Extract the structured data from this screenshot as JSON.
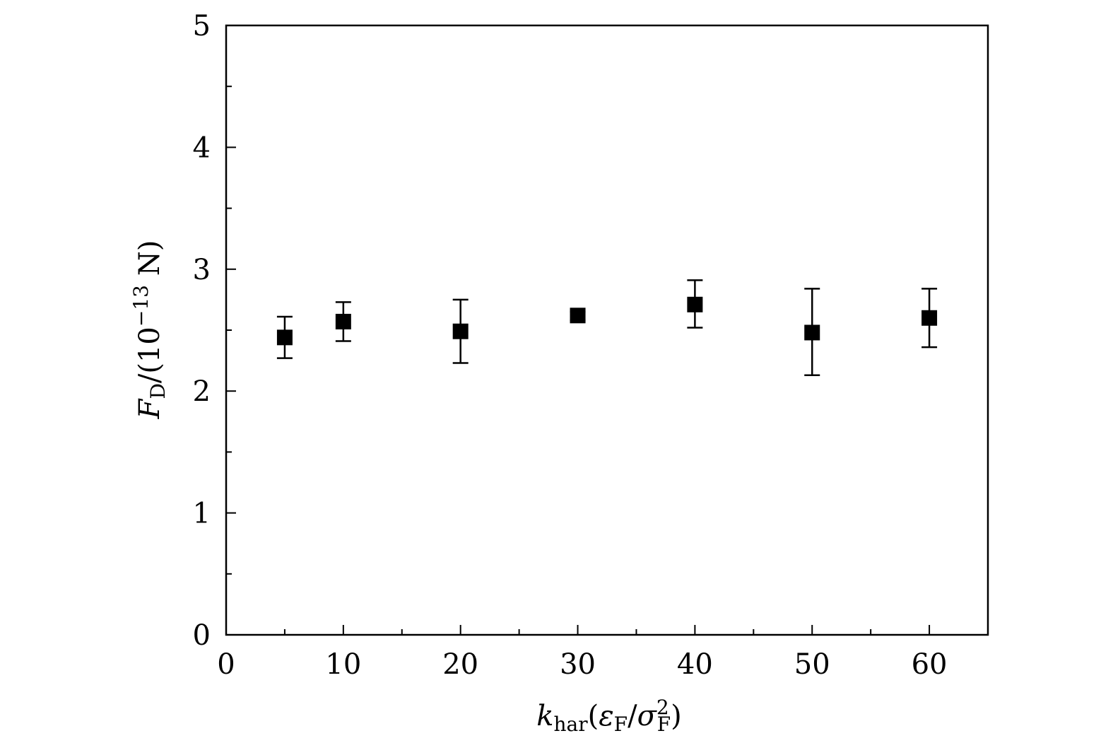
{
  "chart_data": {
    "type": "scatter",
    "xlim": [
      0,
      65
    ],
    "ylim": [
      0,
      5
    ],
    "x_ticks": [
      0,
      10,
      20,
      30,
      40,
      50,
      60
    ],
    "x_tick_labels": [
      "0",
      "10",
      "20",
      "30",
      "40",
      "50",
      "60"
    ],
    "x_minor_ticks": [
      5,
      15,
      25,
      35,
      45,
      55
    ],
    "y_ticks": [
      0,
      1,
      2,
      3,
      4,
      5
    ],
    "y_tick_labels": [
      "0",
      "1",
      "2",
      "3",
      "4",
      "5"
    ],
    "y_minor_ticks": [
      0.5,
      1.5,
      2.5,
      3.5,
      4.5
    ],
    "xlabel": {
      "main": "k",
      "sub": "har",
      "open": "(",
      "eps": "ε",
      "eps_sub": "F",
      "slash": "/",
      "sigma": "σ",
      "sigma_sup": "2",
      "sigma_sub": "F",
      "close": ")"
    },
    "ylabel": {
      "main": "F",
      "sub": "D",
      "rest": "/(10",
      "exp": "−13",
      "unit": " N)"
    },
    "grid": false,
    "legend": "none",
    "marker": "square",
    "marker_color": "#000000",
    "series": [
      {
        "x": [
          5,
          10,
          20,
          30,
          40,
          50,
          60
        ],
        "y": [
          2.44,
          2.57,
          2.49,
          2.62,
          2.71,
          2.48,
          2.6
        ],
        "y_err_low": [
          2.27,
          2.41,
          2.23,
          2.58,
          2.52,
          2.13,
          2.36
        ],
        "y_err_high": [
          2.61,
          2.73,
          2.75,
          2.65,
          2.91,
          2.84,
          2.84
        ]
      }
    ]
  }
}
